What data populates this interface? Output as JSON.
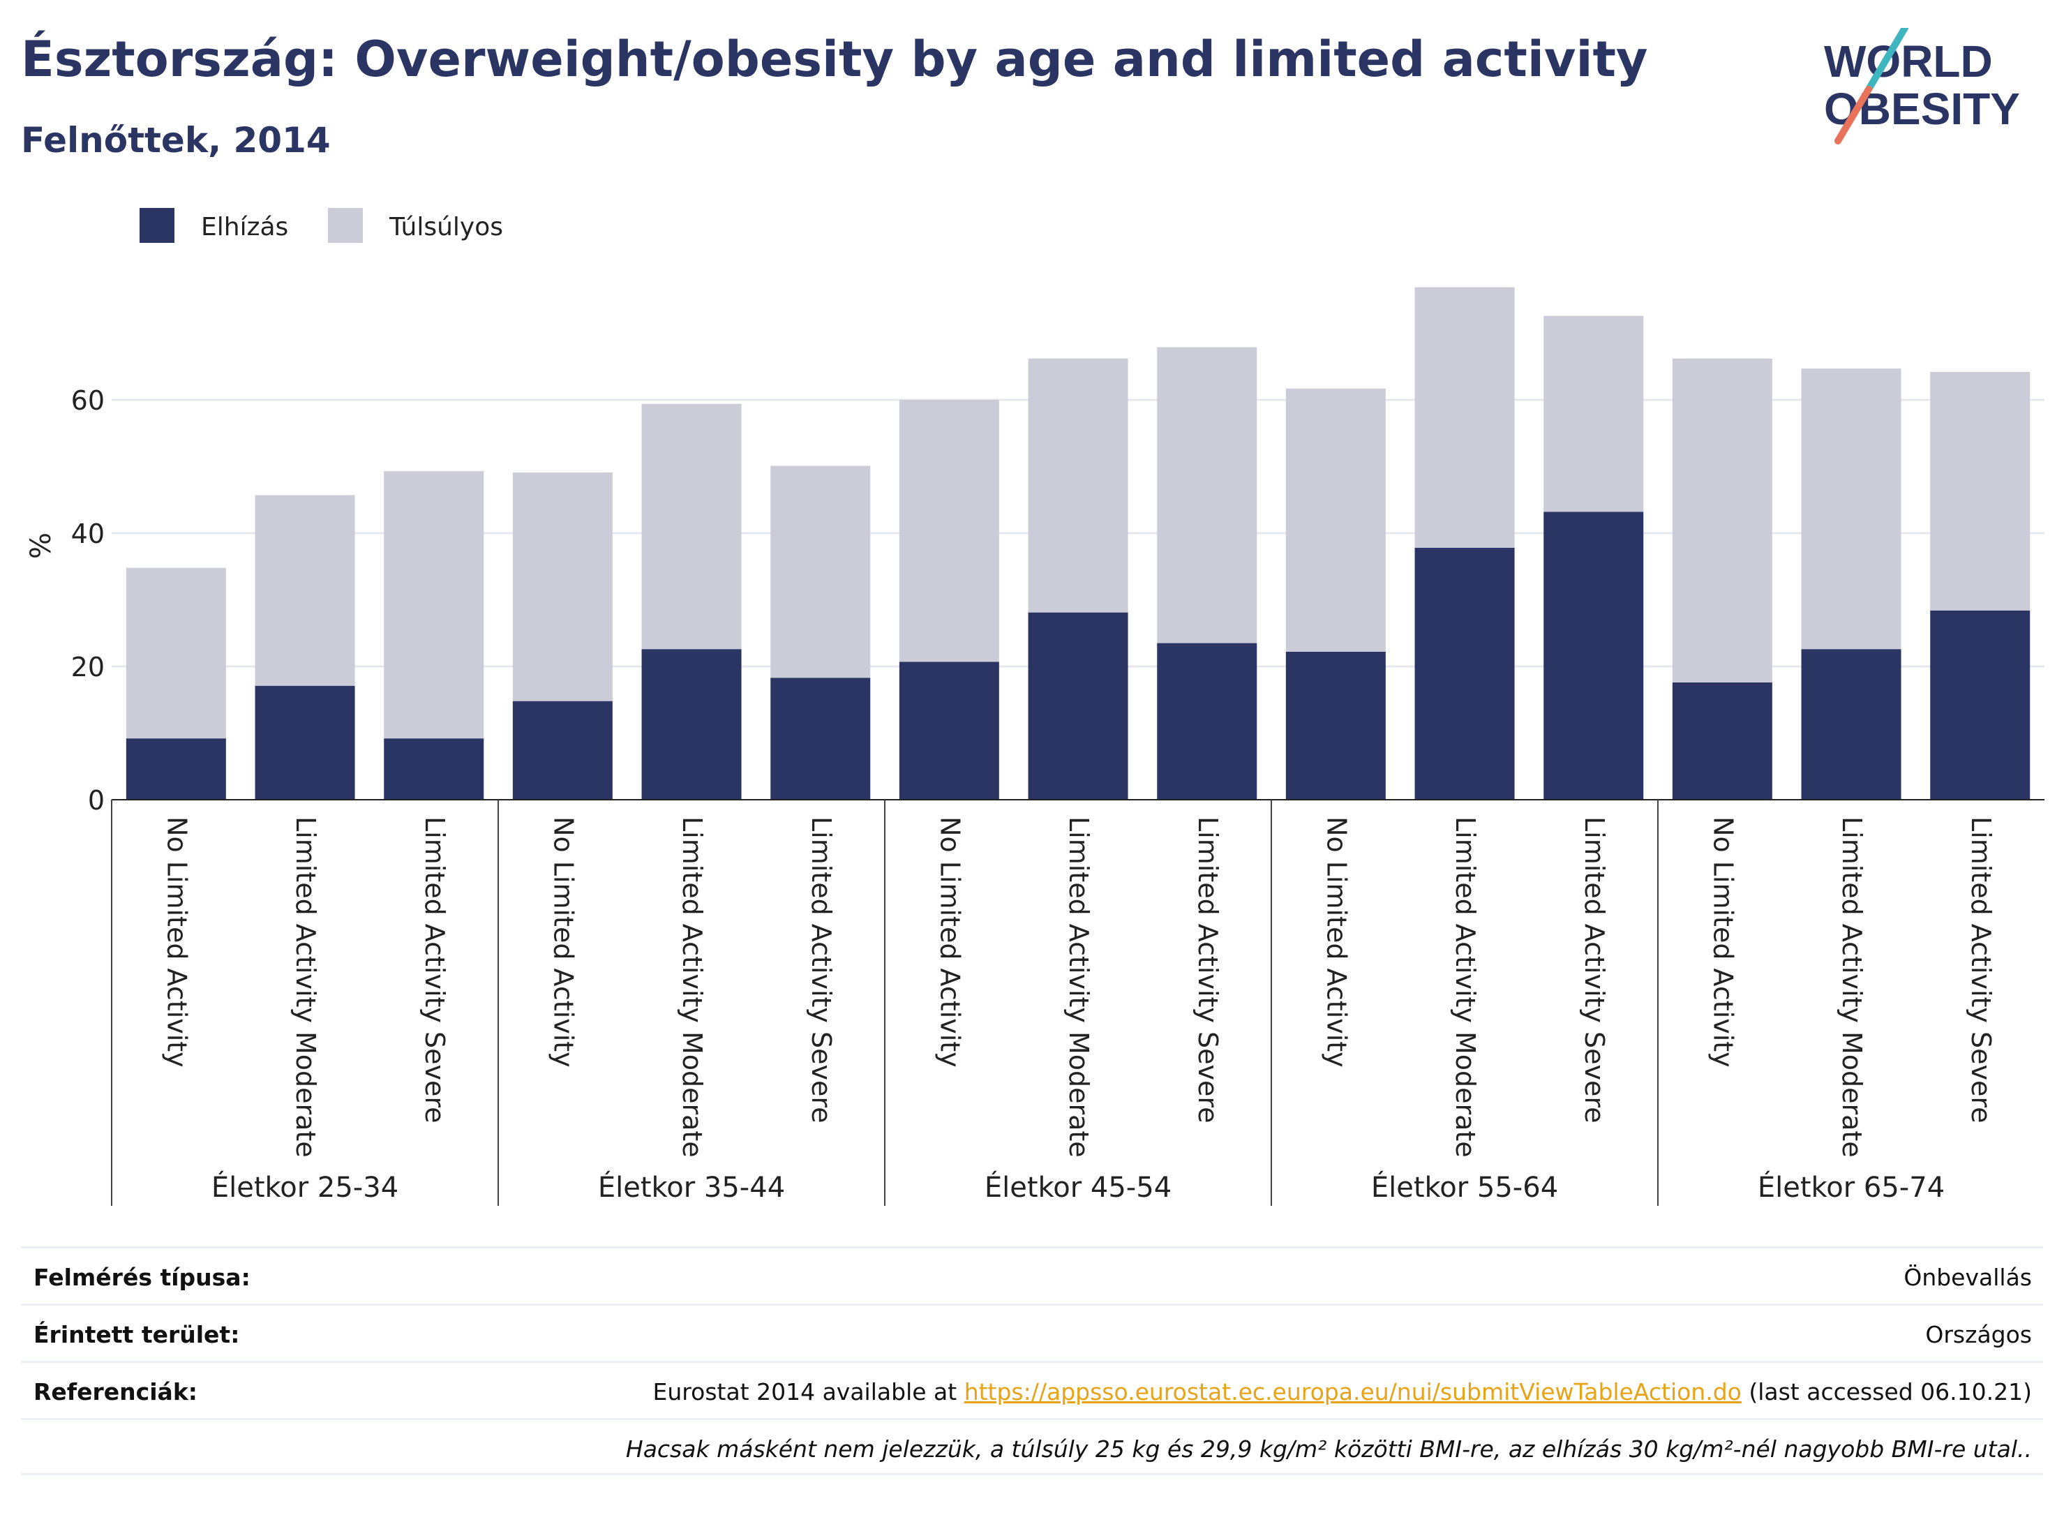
{
  "title": "Észtország: Overweight/obesity by age and limited activity",
  "subtitle": "Felnőttek, 2014",
  "logo": {
    "line1": "WORLD",
    "line2": "OBESITY"
  },
  "colors": {
    "obesity": "#2a3564",
    "overweight": "#cbccd8",
    "title": "#2a3564",
    "link": "#e8a317",
    "logo_teal": "#3fb5bf",
    "logo_coral": "#e8735a"
  },
  "chart_data": {
    "type": "bar",
    "stacked": true,
    "ylabel": "%",
    "ylim": [
      0,
      80
    ],
    "yticks": [
      0,
      20,
      40,
      60
    ],
    "grid": true,
    "legend_position": "top-left",
    "series": [
      {
        "name": "Elhízás",
        "color": "#2a3564",
        "values": [
          9.2,
          17.1,
          9.2,
          14.8,
          22.6,
          18.3,
          20.7,
          28.1,
          23.5,
          22.2,
          37.8,
          43.2,
          17.6,
          22.6,
          28.4
        ]
      },
      {
        "name": "Túlsúlyos",
        "color": "#cbccd8",
        "values": [
          25.6,
          28.6,
          40.1,
          34.3,
          36.8,
          31.8,
          39.3,
          38.1,
          44.4,
          39.5,
          39.1,
          29.4,
          48.6,
          42.1,
          35.8
        ]
      }
    ],
    "groups": [
      {
        "label": "Életkor 25-34",
        "categories": [
          "No Limited Activity",
          "Limited Activity Moderate",
          "Limited Activity Severe"
        ]
      },
      {
        "label": "Életkor 35-44",
        "categories": [
          "No Limited Activity",
          "Limited Activity Moderate",
          "Limited Activity Severe"
        ]
      },
      {
        "label": "Életkor 45-54",
        "categories": [
          "No Limited Activity",
          "Limited Activity Moderate",
          "Limited Activity Severe"
        ]
      },
      {
        "label": "Életkor 55-64",
        "categories": [
          "No Limited Activity",
          "Limited Activity Moderate",
          "Limited Activity Severe"
        ]
      },
      {
        "label": "Életkor 65-74",
        "categories": [
          "No Limited Activity",
          "Limited Activity Moderate",
          "Limited Activity Severe"
        ]
      }
    ]
  },
  "info": {
    "survey_label": "Felmérés típusa:",
    "survey_value": "Önbevallás",
    "area_label": "Érintett terület:",
    "area_value": "Országos",
    "ref_label": "Referenciák:",
    "ref_prefix": "Eurostat 2014 available at ",
    "ref_link": "https://appsso.eurostat.ec.europa.eu/nui/submitViewTableAction.do",
    "ref_suffix": " (last accessed 06.10.21)",
    "note": "Hacsak másként nem jelezzük, a túlsúly 25 kg és 29,9 kg/m² közötti BMI-re, az elhízás 30 kg/m²-nél nagyobb BMI-re utal.."
  }
}
